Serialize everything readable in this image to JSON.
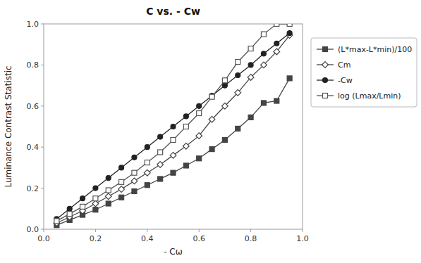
{
  "chart_data": {
    "type": "line",
    "title": "C vs. - Cw",
    "xlabel": "- Cω",
    "ylabel": "Luminance Contrast Statistic",
    "x": [
      0.05,
      0.1,
      0.15,
      0.2,
      0.25,
      0.3,
      0.35,
      0.4,
      0.45,
      0.5,
      0.55,
      0.6,
      0.65,
      0.7,
      0.75,
      0.8,
      0.85,
      0.9,
      0.95
    ],
    "series": [
      {
        "name": "(L*max-L*min)/100",
        "color": "#444444",
        "marker": "square",
        "values": [
          0.02,
          0.045,
          0.07,
          0.095,
          0.125,
          0.155,
          0.185,
          0.215,
          0.245,
          0.275,
          0.31,
          0.345,
          0.39,
          0.435,
          0.49,
          0.545,
          0.615,
          0.625,
          0.735
        ]
      },
      {
        "name": "Cm",
        "color": "#444444",
        "marker": "diamond-open",
        "values": [
          0.03,
          0.06,
          0.09,
          0.125,
          0.16,
          0.195,
          0.235,
          0.275,
          0.315,
          0.36,
          0.405,
          0.455,
          0.535,
          0.6,
          0.665,
          0.74,
          0.8,
          0.865,
          0.945
        ]
      },
      {
        "name": "-Cw",
        "color": "#222222",
        "marker": "circle",
        "values": [
          0.05,
          0.1,
          0.15,
          0.2,
          0.25,
          0.3,
          0.35,
          0.4,
          0.45,
          0.5,
          0.55,
          0.6,
          0.65,
          0.7,
          0.75,
          0.8,
          0.855,
          0.905,
          0.955
        ]
      },
      {
        "name": "log (Lmax/Lmin)",
        "color": "#555555",
        "marker": "square-open",
        "values": [
          0.04,
          0.075,
          0.11,
          0.15,
          0.19,
          0.23,
          0.275,
          0.325,
          0.375,
          0.435,
          0.5,
          0.565,
          0.645,
          0.725,
          0.815,
          0.88,
          0.95,
          1.0,
          1.0
        ]
      }
    ],
    "xlim": [
      0.0,
      1.0
    ],
    "ylim": [
      0.0,
      1.0
    ],
    "xticks": [
      {
        "value": 0.0,
        "label": "0.0"
      },
      0.2,
      0.4,
      0.6,
      0.8,
      {
        "value": 1.0,
        "label": "1.0"
      }
    ],
    "yticks": [
      {
        "value": 0.0,
        "label": "0.0"
      },
      0.2,
      0.4,
      0.6,
      0.8,
      {
        "value": 1.0,
        "label": "1.0"
      }
    ],
    "grid": false,
    "legend": "right"
  }
}
